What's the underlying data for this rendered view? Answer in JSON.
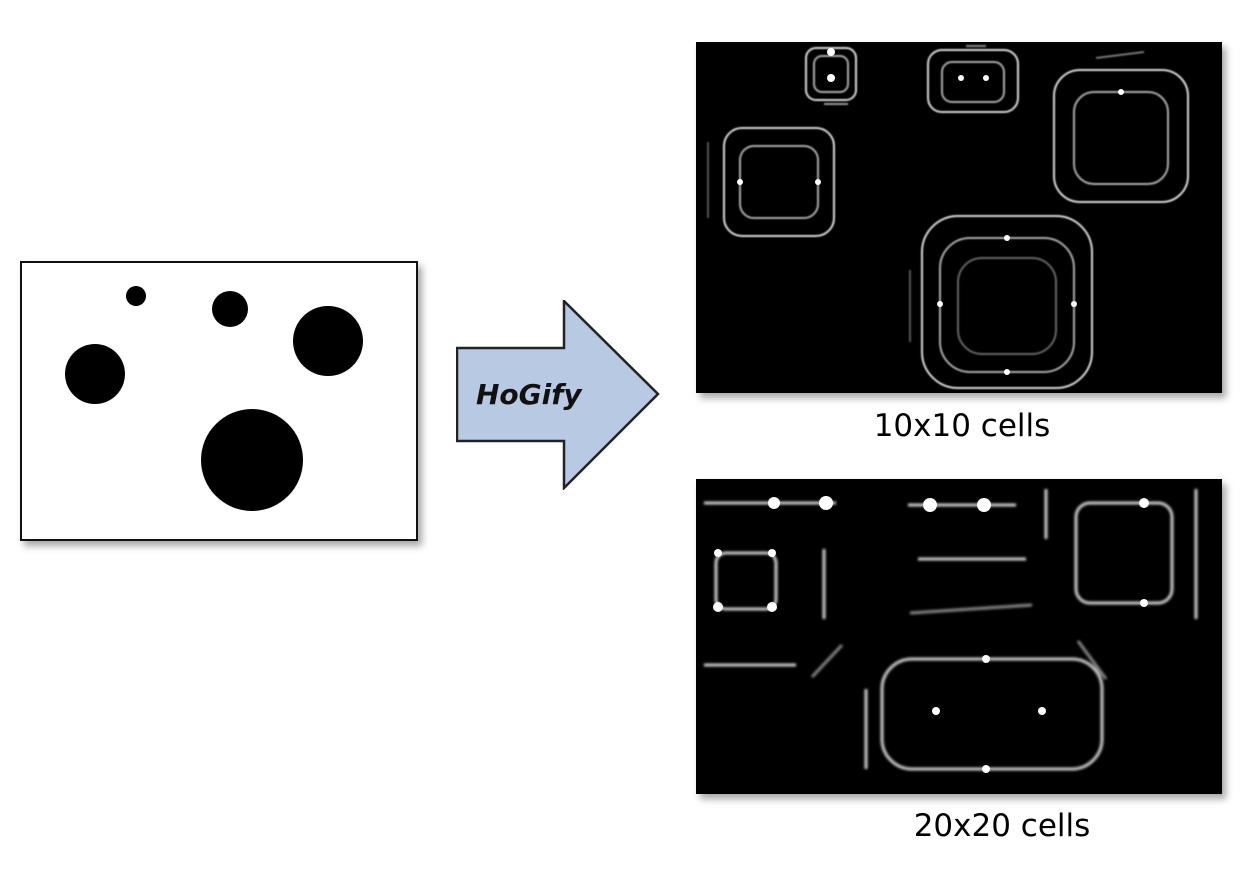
{
  "arrow": {
    "label": "HoGify",
    "fill": "#b7c9e3",
    "stroke": "#222222"
  },
  "input_image": {
    "description_label": "black circles on white",
    "blob_color": "#000000",
    "background": "#ffffff"
  },
  "outputs": [
    {
      "caption": "10x10 cells"
    },
    {
      "caption": "20x20 cells"
    }
  ]
}
